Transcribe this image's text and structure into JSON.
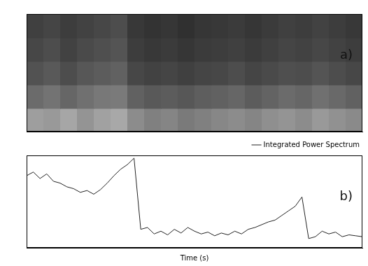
{
  "chart_data": [
    {
      "type": "heatmap",
      "annotations": [
        "a)"
      ],
      "x_edges": [
        0,
        5,
        10,
        15,
        20,
        25,
        30,
        35,
        40,
        45,
        50,
        55,
        60,
        65,
        70,
        75,
        80,
        85,
        90,
        95,
        100
      ],
      "y_edges": [
        0,
        0.2,
        0.4,
        0.6,
        0.8,
        1
      ],
      "cells": [
        [
          0.62,
          0.6,
          0.65,
          0.58,
          0.63,
          0.66,
          0.55,
          0.5,
          0.52,
          0.48,
          0.5,
          0.53,
          0.55,
          0.52,
          0.56,
          0.58,
          0.55,
          0.6,
          0.57,
          0.54
        ],
        [
          0.42,
          0.45,
          0.4,
          0.44,
          0.47,
          0.48,
          0.38,
          0.35,
          0.36,
          0.34,
          0.37,
          0.38,
          0.4,
          0.36,
          0.39,
          0.42,
          0.4,
          0.44,
          0.41,
          0.38
        ],
        [
          0.32,
          0.35,
          0.3,
          0.34,
          0.36,
          0.38,
          0.28,
          0.26,
          0.27,
          0.25,
          0.27,
          0.28,
          0.3,
          0.27,
          0.29,
          0.31,
          0.3,
          0.33,
          0.3,
          0.28
        ],
        [
          0.28,
          0.3,
          0.26,
          0.29,
          0.31,
          0.33,
          0.24,
          0.22,
          0.23,
          0.21,
          0.23,
          0.24,
          0.25,
          0.23,
          0.25,
          0.27,
          0.26,
          0.28,
          0.26,
          0.24
        ],
        [
          0.25,
          0.27,
          0.24,
          0.26,
          0.28,
          0.3,
          0.22,
          0.2,
          0.21,
          0.19,
          0.21,
          0.22,
          0.23,
          0.21,
          0.23,
          0.25,
          0.24,
          0.26,
          0.24,
          0.22
        ]
      ],
      "color_range": [
        0,
        1
      ],
      "xlim": [
        0,
        100
      ],
      "ylim": [
        0,
        1
      ],
      "tick_labels": false
    },
    {
      "type": "line",
      "annotations": [
        "b)"
      ],
      "x_label": "Time (s)",
      "x": [
        0,
        2,
        4,
        6,
        8,
        10,
        12,
        14,
        16,
        18,
        20,
        22,
        24,
        26,
        28,
        30,
        32,
        34,
        36,
        38,
        40,
        42,
        44,
        46,
        48,
        50,
        52,
        54,
        56,
        58,
        60,
        62,
        64,
        66,
        68,
        70,
        72,
        74,
        76,
        78,
        80,
        82,
        84,
        86,
        88,
        90,
        92,
        94,
        96,
        98,
        100
      ],
      "series": [
        {
          "name": "Integrated Power Spectrum",
          "color": "#222222",
          "values": [
            0.78,
            0.82,
            0.75,
            0.8,
            0.72,
            0.7,
            0.66,
            0.64,
            0.6,
            0.62,
            0.58,
            0.63,
            0.7,
            0.78,
            0.85,
            0.9,
            0.97,
            0.2,
            0.22,
            0.15,
            0.18,
            0.14,
            0.2,
            0.16,
            0.22,
            0.18,
            0.15,
            0.17,
            0.13,
            0.16,
            0.14,
            0.18,
            0.15,
            0.2,
            0.22,
            0.25,
            0.28,
            0.3,
            0.35,
            0.4,
            0.45,
            0.55,
            0.1,
            0.12,
            0.18,
            0.15,
            0.17,
            0.12,
            0.14,
            0.13,
            0.12
          ]
        }
      ],
      "xlim": [
        0,
        100
      ],
      "ylim": [
        0,
        1
      ],
      "tick_labels": false,
      "legend": "top-right"
    }
  ]
}
